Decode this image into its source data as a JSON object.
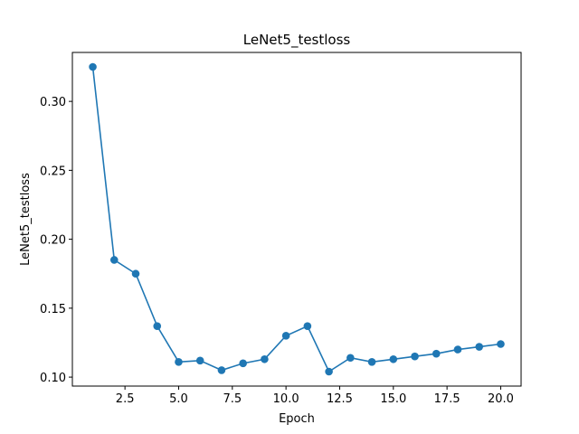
{
  "chart_data": {
    "type": "line",
    "title": "LeNet5_testloss",
    "xlabel": "Epoch",
    "ylabel": "LeNet5_testloss",
    "xlim": [
      0.05,
      20.95
    ],
    "ylim": [
      0.0935,
      0.3355
    ],
    "xticks": [
      2.5,
      5.0,
      7.5,
      10.0,
      12.5,
      15.0,
      17.5,
      20.0
    ],
    "xtick_labels": [
      "2.5",
      "5.0",
      "7.5",
      "10.0",
      "12.5",
      "15.0",
      "17.5",
      "20.0"
    ],
    "yticks": [
      0.1,
      0.15,
      0.2,
      0.25,
      0.3
    ],
    "ytick_labels": [
      "0.10",
      "0.15",
      "0.20",
      "0.25",
      "0.30"
    ],
    "grid": false,
    "series": [
      {
        "color": "#1f77b4",
        "marker": "circle",
        "x": [
          1,
          2,
          3,
          4,
          5,
          6,
          7,
          8,
          9,
          10,
          11,
          12,
          13,
          14,
          15,
          16,
          17,
          18,
          19,
          20
        ],
        "y": [
          0.325,
          0.185,
          0.175,
          0.137,
          0.111,
          0.112,
          0.105,
          0.11,
          0.113,
          0.13,
          0.137,
          0.104,
          0.114,
          0.111,
          0.113,
          0.115,
          0.117,
          0.12,
          0.122,
          0.124
        ]
      }
    ]
  }
}
